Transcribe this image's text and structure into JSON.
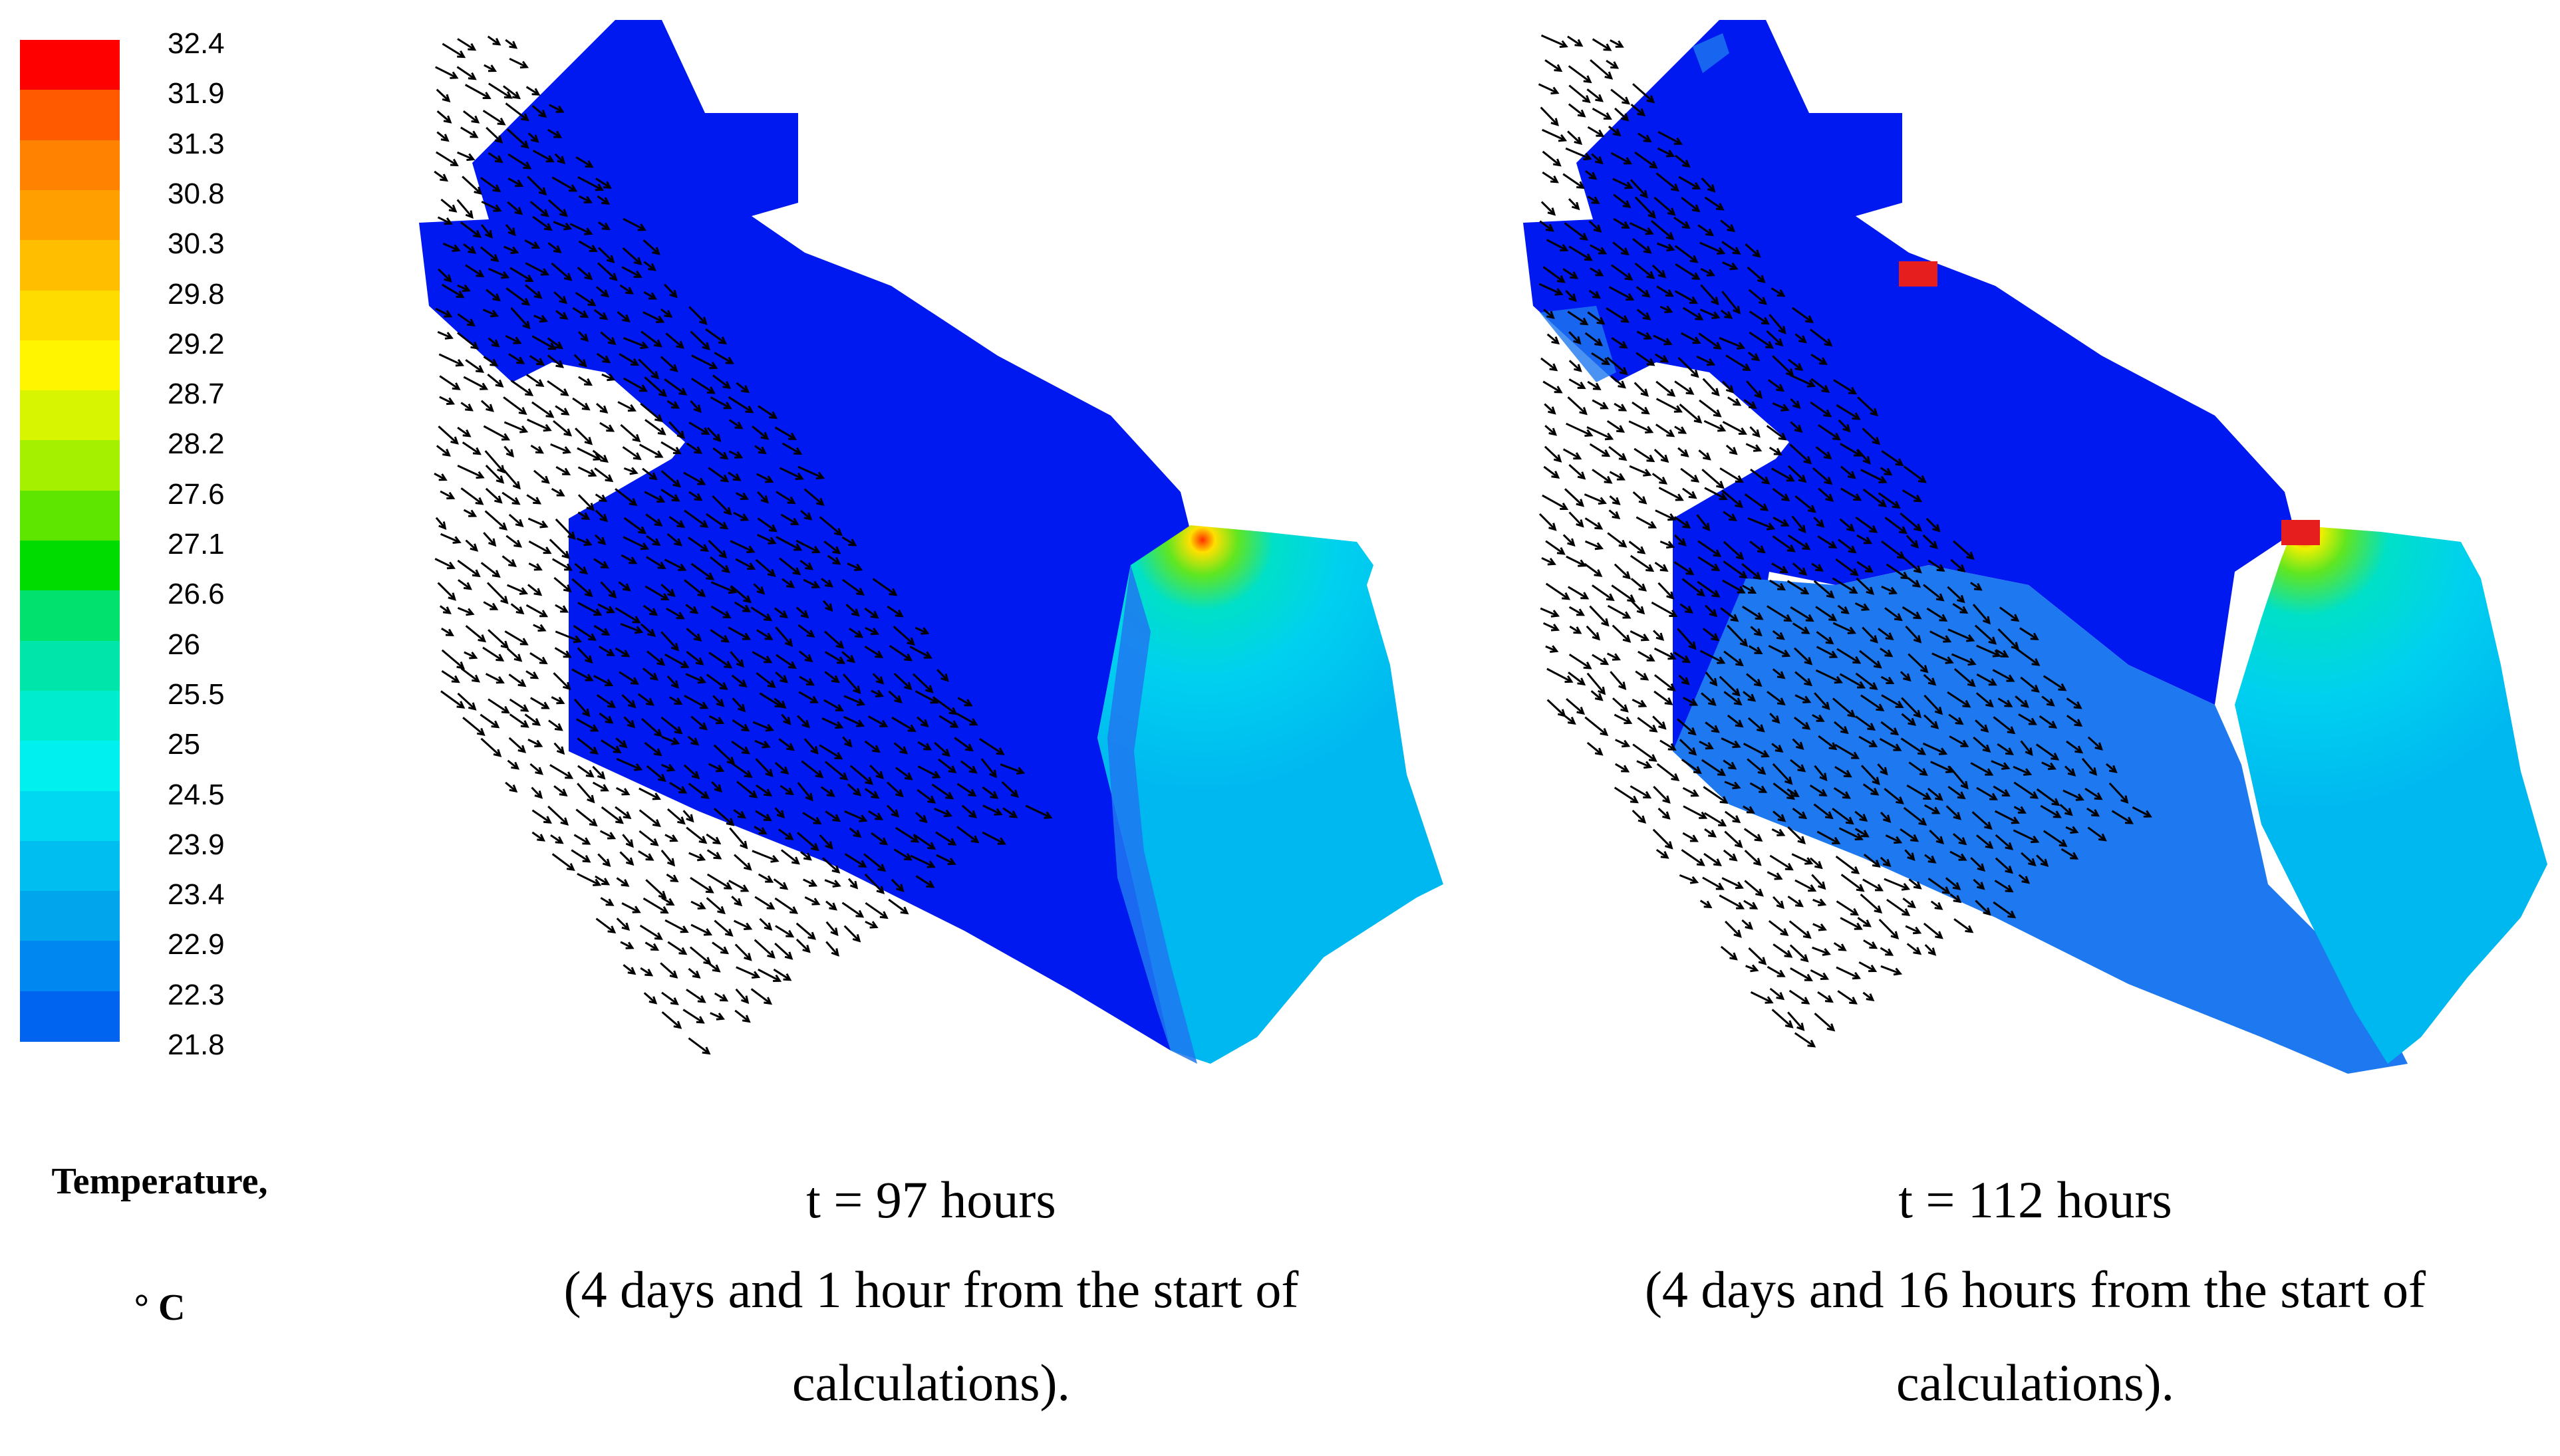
{
  "legend": {
    "title_line1": "Temperature,",
    "title_line2": "° C",
    "ticks": [
      "32.4",
      "31.9",
      "31.3",
      "30.8",
      "30.3",
      "29.8",
      "29.2",
      "28.7",
      "28.2",
      "27.6",
      "27.1",
      "26.6",
      "26",
      "25.5",
      "25",
      "24.5",
      "23.9",
      "23.4",
      "22.9",
      "22.3",
      "21.8"
    ],
    "colors": [
      "#ff0000",
      "#ff5a00",
      "#ff8200",
      "#ffa000",
      "#ffbe00",
      "#ffdc00",
      "#fff500",
      "#d7f500",
      "#a5f000",
      "#5fe600",
      "#00dc00",
      "#00e16e",
      "#00e6aa",
      "#00ecce",
      "#00f0f0",
      "#00d7f0",
      "#00bef0",
      "#00a5eb",
      "#0087f0",
      "#0064f0",
      "#0019f0"
    ]
  },
  "panels": [
    {
      "time_label": "t = 97 hours",
      "caption_line1": "(4 days and 1 hour from the start of",
      "caption_line2": "calculations)."
    },
    {
      "time_label": "t = 112 hours",
      "caption_line1": "(4 days and 16 hours from the start of",
      "caption_line2": "calculations)."
    }
  ],
  "colors": {
    "cold": "#0019f0",
    "mid_blue": "#1e78f0",
    "warm_cyan": "#00d2f0",
    "hot_core": "#ff4000",
    "marker": "#e61e1e"
  }
}
